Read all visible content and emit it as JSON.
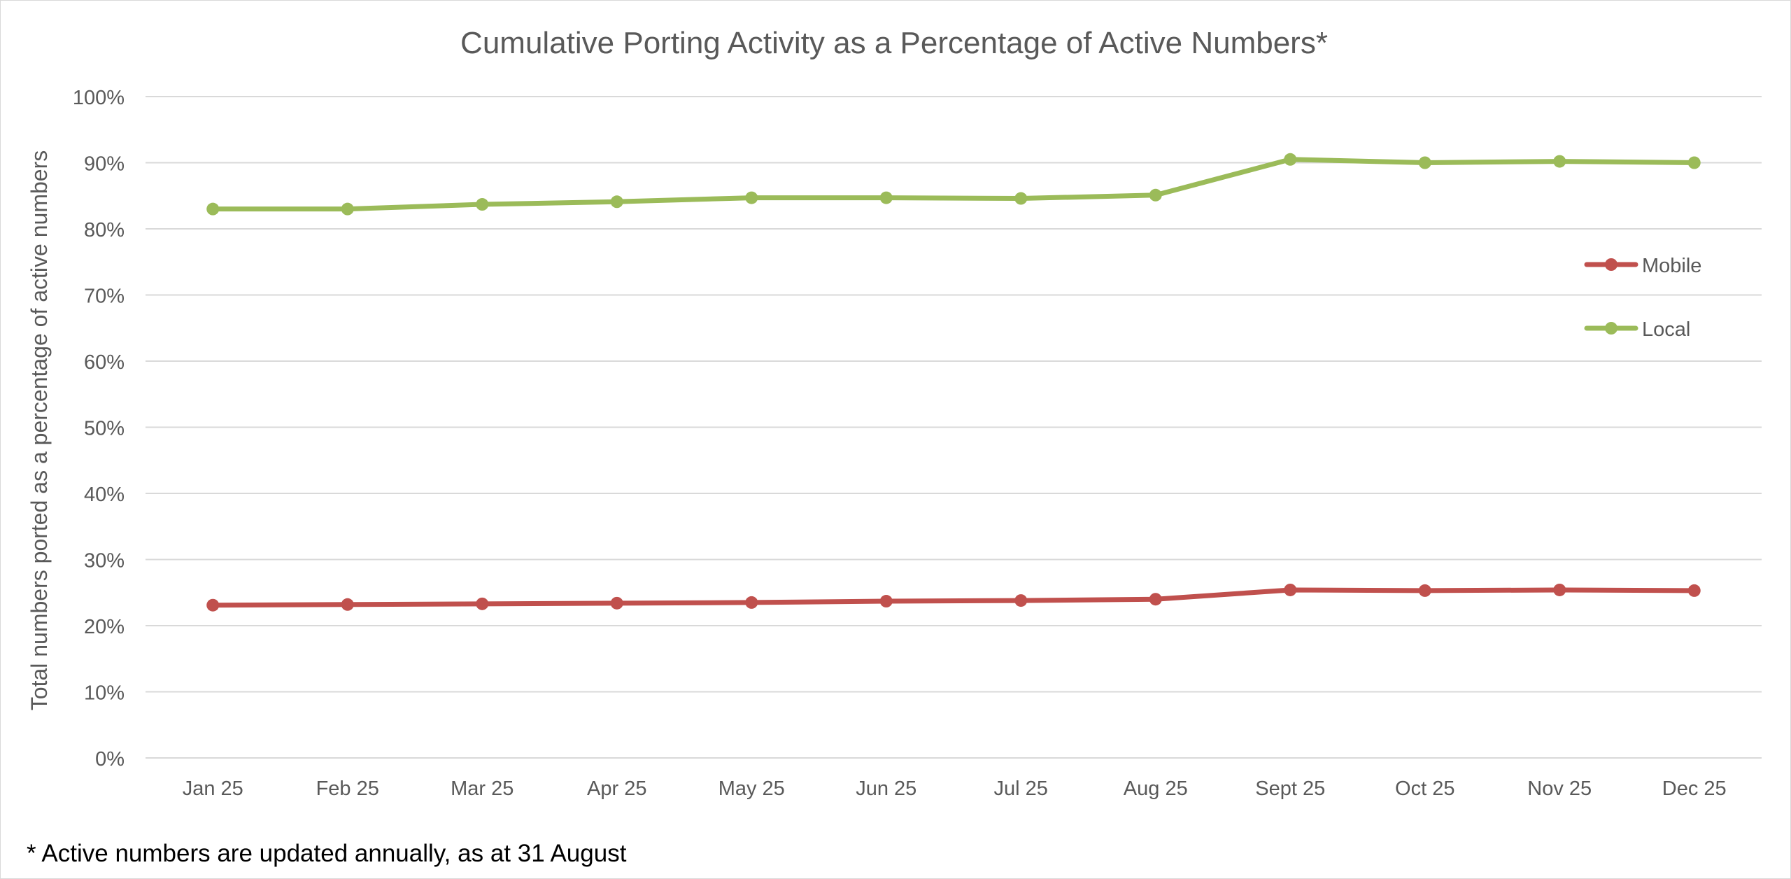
{
  "chart_data": {
    "type": "line",
    "title": "Cumulative Porting Activity as a Percentage of Active Numbers*",
    "xlabel": "",
    "ylabel": "Total numbers ported as a percentage of active numbers",
    "categories": [
      "Jan 25",
      "Feb 25",
      "Mar 25",
      "Apr 25",
      "May 25",
      "Jun 25",
      "Jul 25",
      "Aug 25",
      "Sept 25",
      "Oct 25",
      "Nov 25",
      "Dec 25"
    ],
    "series": [
      {
        "name": "Mobile",
        "color": "#c0504d",
        "values": [
          23.1,
          23.2,
          23.3,
          23.4,
          23.5,
          23.7,
          23.8,
          24.0,
          25.4,
          25.3,
          25.4,
          25.3
        ]
      },
      {
        "name": "Local",
        "color": "#9bbb59",
        "values": [
          83.0,
          83.0,
          83.7,
          84.1,
          84.7,
          84.7,
          84.6,
          85.1,
          90.5,
          90.0,
          90.2,
          90.0
        ]
      }
    ],
    "ylim": [
      0,
      100
    ],
    "yticks": [
      "0%",
      "10%",
      "20%",
      "30%",
      "40%",
      "50%",
      "60%",
      "70%",
      "80%",
      "90%",
      "100%"
    ],
    "grid": true,
    "legend_position": "right"
  },
  "footnote": "* Active numbers are updated annually, as at 31 August"
}
